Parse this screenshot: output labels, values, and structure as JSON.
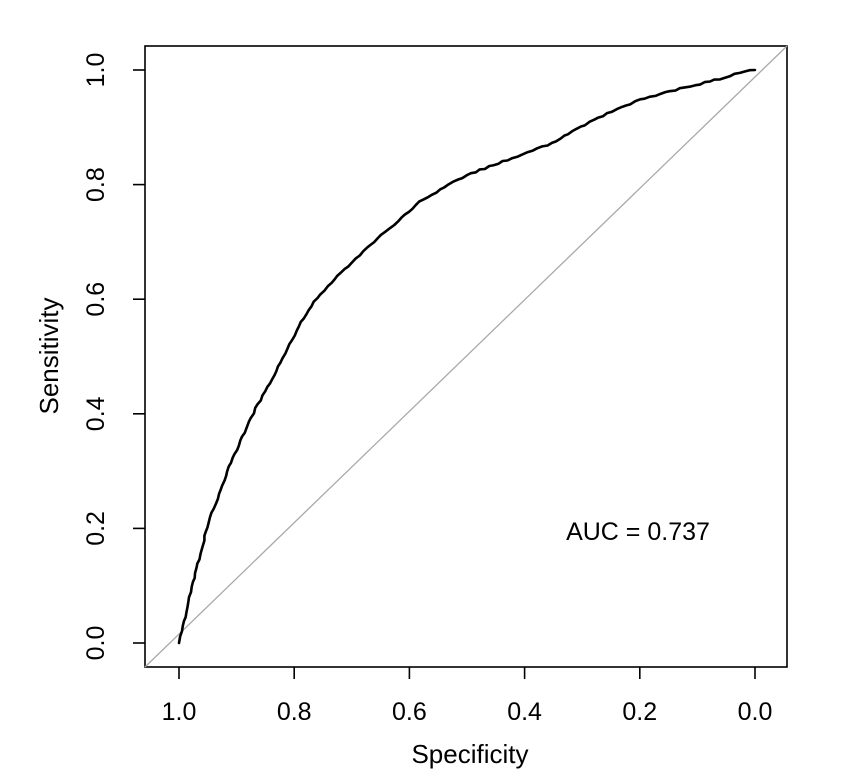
{
  "chart_data": {
    "type": "line",
    "subtype": "roc-curve",
    "title": "",
    "xlabel": "Specificity",
    "ylabel": "Sensitivity",
    "annotation": "AUC = 0.737",
    "auc": 0.737,
    "grid": false,
    "legend": "none",
    "xlim": [
      1.0,
      0.0
    ],
    "ylim": [
      0.0,
      1.0
    ],
    "x_ticks": {
      "values": [
        1.0,
        0.8,
        0.6,
        0.4,
        0.2,
        0.0
      ],
      "labels": [
        "1.0",
        "0.8",
        "0.6",
        "0.4",
        "0.2",
        "0.0"
      ]
    },
    "y_ticks": {
      "values": [
        0.0,
        0.2,
        0.4,
        0.6,
        0.8,
        1.0
      ],
      "labels": [
        "0.0",
        "0.2",
        "0.4",
        "0.6",
        "0.8",
        "1.0"
      ]
    },
    "colors": {
      "roc_curve": "#000000",
      "chance_line": "#a9a9a9",
      "axis": "#000000",
      "background": "#ffffff"
    },
    "series": [
      {
        "name": "roc-curve",
        "color": "#000000",
        "stroke_width": 2.6,
        "points_specificity_sensitivity": [
          [
            1.0,
            0.0
          ],
          [
            0.995,
            0.02
          ],
          [
            0.98,
            0.09
          ],
          [
            0.963,
            0.155
          ],
          [
            0.949,
            0.21
          ],
          [
            0.93,
            0.26
          ],
          [
            0.91,
            0.315
          ],
          [
            0.89,
            0.36
          ],
          [
            0.867,
            0.41
          ],
          [
            0.838,
            0.46
          ],
          [
            0.824,
            0.49
          ],
          [
            0.792,
            0.553
          ],
          [
            0.766,
            0.595
          ],
          [
            0.736,
            0.63
          ],
          [
            0.707,
            0.657
          ],
          [
            0.679,
            0.683
          ],
          [
            0.649,
            0.713
          ],
          [
            0.619,
            0.736
          ],
          [
            0.583,
            0.77
          ],
          [
            0.54,
            0.795
          ],
          [
            0.5,
            0.817
          ],
          [
            0.439,
            0.84
          ],
          [
            0.395,
            0.856
          ],
          [
            0.352,
            0.872
          ],
          [
            0.31,
            0.897
          ],
          [
            0.265,
            0.92
          ],
          [
            0.2,
            0.948
          ],
          [
            0.13,
            0.968
          ],
          [
            0.07,
            0.982
          ],
          [
            0.026,
            0.995
          ],
          [
            0.0,
            1.0
          ]
        ]
      },
      {
        "name": "chance-line",
        "color": "#a9a9a9",
        "stroke_width": 1.3,
        "points_specificity_sensitivity": [
          [
            1.0,
            0.0
          ],
          [
            0.0,
            1.0
          ]
        ]
      }
    ]
  }
}
